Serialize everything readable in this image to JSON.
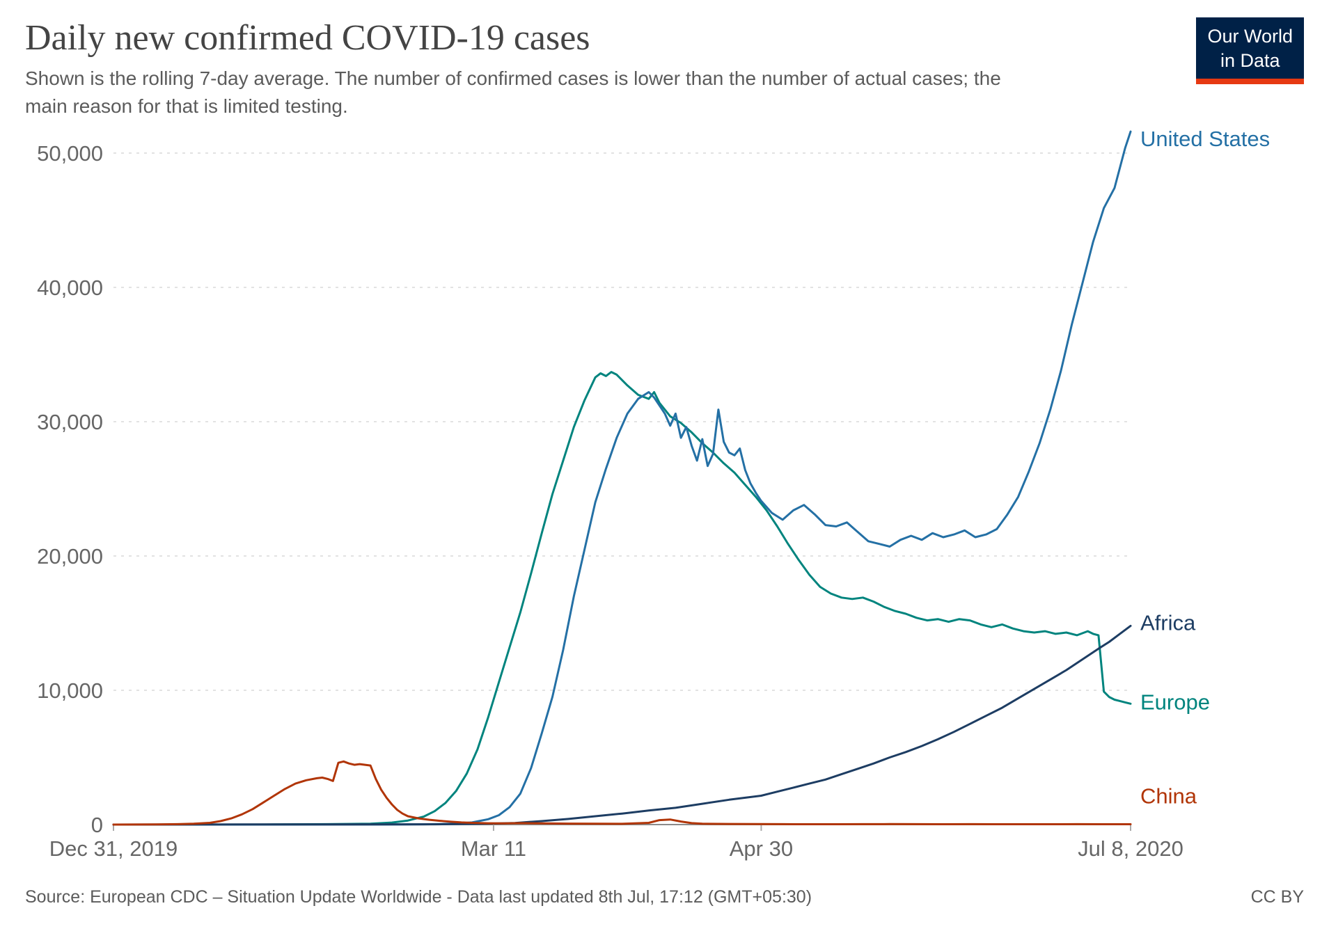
{
  "header": {
    "title": "Daily new confirmed COVID-19 cases",
    "subtitle": "Shown is the rolling 7-day average. The number of confirmed cases is lower than the number of actual cases; the main reason for that is limited testing.",
    "logo": {
      "line1": "Our World",
      "line2": "in Data",
      "bg": "#002147",
      "stripe": "#e63912"
    }
  },
  "footer": {
    "source": "Source: European CDC – Situation Update Worldwide - Data last updated 8th Jul, 17:12 (GMT+05:30)",
    "license": "CC BY"
  },
  "chart_data": {
    "type": "line",
    "title": "Daily new confirmed COVID-19 cases",
    "subtitle": "Shown is the rolling 7-day average. The number of confirmed cases is lower than the number of actual cases; the main reason for that is limited testing.",
    "grid": true,
    "legend_position": "right-end-labels",
    "x_axis": {
      "unit": "days since Dec 31, 2019",
      "domain": [
        0,
        190
      ],
      "ticks": [
        {
          "day": 0,
          "label": "Dec 31, 2019"
        },
        {
          "day": 71,
          "label": "Mar 11"
        },
        {
          "day": 121,
          "label": "Apr 30"
        },
        {
          "day": 190,
          "label": "Jul 8, 2020"
        }
      ]
    },
    "y_axis": {
      "domain": [
        0,
        52000
      ],
      "ticks": [
        {
          "value": 0,
          "label": "0"
        },
        {
          "value": 10000,
          "label": "10,000"
        },
        {
          "value": 20000,
          "label": "20,000"
        },
        {
          "value": 30000,
          "label": "30,000"
        },
        {
          "value": 40000,
          "label": "40,000"
        },
        {
          "value": 50000,
          "label": "50,000"
        }
      ]
    },
    "series": [
      {
        "name": "Europe",
        "color": "#00847e",
        "label_dy": 8,
        "points": [
          [
            0,
            0
          ],
          [
            20,
            0
          ],
          [
            30,
            10
          ],
          [
            40,
            30
          ],
          [
            48,
            60
          ],
          [
            52,
            150
          ],
          [
            55,
            300
          ],
          [
            58,
            600
          ],
          [
            60,
            1000
          ],
          [
            62,
            1600
          ],
          [
            64,
            2500
          ],
          [
            66,
            3800
          ],
          [
            68,
            5600
          ],
          [
            70,
            8000
          ],
          [
            72,
            10600
          ],
          [
            74,
            13200
          ],
          [
            76,
            15800
          ],
          [
            78,
            18700
          ],
          [
            80,
            21700
          ],
          [
            82,
            24600
          ],
          [
            84,
            27100
          ],
          [
            86,
            29600
          ],
          [
            88,
            31600
          ],
          [
            90,
            33300
          ],
          [
            91,
            33600
          ],
          [
            92,
            33400
          ],
          [
            93,
            33700
          ],
          [
            94,
            33500
          ],
          [
            95,
            33100
          ],
          [
            96,
            32700
          ],
          [
            98,
            32000
          ],
          [
            100,
            31700
          ],
          [
            101,
            32200
          ],
          [
            102,
            31400
          ],
          [
            104,
            30400
          ],
          [
            106,
            29900
          ],
          [
            108,
            29200
          ],
          [
            110,
            28400
          ],
          [
            112,
            27700
          ],
          [
            114,
            26900
          ],
          [
            116,
            26200
          ],
          [
            118,
            25300
          ],
          [
            120,
            24400
          ],
          [
            122,
            23400
          ],
          [
            124,
            22200
          ],
          [
            126,
            20900
          ],
          [
            128,
            19700
          ],
          [
            130,
            18600
          ],
          [
            132,
            17700
          ],
          [
            134,
            17200
          ],
          [
            136,
            16900
          ],
          [
            138,
            16800
          ],
          [
            140,
            16900
          ],
          [
            142,
            16600
          ],
          [
            144,
            16200
          ],
          [
            146,
            15900
          ],
          [
            148,
            15700
          ],
          [
            150,
            15400
          ],
          [
            152,
            15200
          ],
          [
            154,
            15300
          ],
          [
            156,
            15100
          ],
          [
            158,
            15300
          ],
          [
            160,
            15200
          ],
          [
            162,
            14900
          ],
          [
            164,
            14700
          ],
          [
            166,
            14900
          ],
          [
            168,
            14600
          ],
          [
            170,
            14400
          ],
          [
            172,
            14300
          ],
          [
            174,
            14400
          ],
          [
            176,
            14200
          ],
          [
            178,
            14300
          ],
          [
            180,
            14100
          ],
          [
            182,
            14400
          ],
          [
            183,
            14200
          ],
          [
            184,
            14100
          ],
          [
            185,
            9900
          ],
          [
            186,
            9500
          ],
          [
            187,
            9300
          ],
          [
            188,
            9200
          ],
          [
            189,
            9100
          ],
          [
            190,
            9000
          ]
        ]
      },
      {
        "name": "United States",
        "color": "#2470a5",
        "label_dy": 6,
        "points": [
          [
            0,
            0
          ],
          [
            30,
            0
          ],
          [
            50,
            5
          ],
          [
            55,
            10
          ],
          [
            58,
            20
          ],
          [
            61,
            40
          ],
          [
            64,
            80
          ],
          [
            67,
            160
          ],
          [
            70,
            400
          ],
          [
            72,
            700
          ],
          [
            74,
            1300
          ],
          [
            76,
            2300
          ],
          [
            78,
            4200
          ],
          [
            80,
            6800
          ],
          [
            82,
            9500
          ],
          [
            84,
            13000
          ],
          [
            86,
            17000
          ],
          [
            88,
            20500
          ],
          [
            90,
            24000
          ],
          [
            92,
            26500
          ],
          [
            94,
            28800
          ],
          [
            96,
            30600
          ],
          [
            98,
            31700
          ],
          [
            100,
            32200
          ],
          [
            101,
            31800
          ],
          [
            102,
            31200
          ],
          [
            103,
            30600
          ],
          [
            104,
            29700
          ],
          [
            105,
            30600
          ],
          [
            106,
            28800
          ],
          [
            107,
            29600
          ],
          [
            108,
            28200
          ],
          [
            109,
            27100
          ],
          [
            110,
            28700
          ],
          [
            111,
            26700
          ],
          [
            112,
            27600
          ],
          [
            113,
            30900
          ],
          [
            114,
            28500
          ],
          [
            115,
            27700
          ],
          [
            116,
            27500
          ],
          [
            117,
            28000
          ],
          [
            118,
            26400
          ],
          [
            119,
            25400
          ],
          [
            120,
            24700
          ],
          [
            121,
            24100
          ],
          [
            123,
            23200
          ],
          [
            125,
            22700
          ],
          [
            127,
            23400
          ],
          [
            129,
            23800
          ],
          [
            131,
            23100
          ],
          [
            133,
            22300
          ],
          [
            135,
            22200
          ],
          [
            137,
            22500
          ],
          [
            139,
            21800
          ],
          [
            141,
            21100
          ],
          [
            143,
            20900
          ],
          [
            145,
            20700
          ],
          [
            147,
            21200
          ],
          [
            149,
            21500
          ],
          [
            151,
            21200
          ],
          [
            153,
            21700
          ],
          [
            155,
            21400
          ],
          [
            157,
            21600
          ],
          [
            159,
            21900
          ],
          [
            161,
            21400
          ],
          [
            163,
            21600
          ],
          [
            165,
            22000
          ],
          [
            167,
            23100
          ],
          [
            169,
            24400
          ],
          [
            171,
            26300
          ],
          [
            173,
            28400
          ],
          [
            175,
            30900
          ],
          [
            177,
            33800
          ],
          [
            179,
            37200
          ],
          [
            181,
            40300
          ],
          [
            183,
            43400
          ],
          [
            185,
            45900
          ],
          [
            187,
            47400
          ],
          [
            188,
            48900
          ],
          [
            189,
            50400
          ],
          [
            190,
            51600
          ]
        ]
      },
      {
        "name": "Africa",
        "color": "#1d3d63",
        "label_dy": 6,
        "points": [
          [
            0,
            0
          ],
          [
            60,
            20
          ],
          [
            70,
            60
          ],
          [
            75,
            120
          ],
          [
            80,
            260
          ],
          [
            85,
            420
          ],
          [
            90,
            620
          ],
          [
            95,
            820
          ],
          [
            100,
            1050
          ],
          [
            105,
            1250
          ],
          [
            110,
            1550
          ],
          [
            115,
            1850
          ],
          [
            118,
            2000
          ],
          [
            121,
            2150
          ],
          [
            124,
            2450
          ],
          [
            127,
            2750
          ],
          [
            130,
            3050
          ],
          [
            133,
            3350
          ],
          [
            136,
            3750
          ],
          [
            139,
            4150
          ],
          [
            142,
            4550
          ],
          [
            145,
            5000
          ],
          [
            148,
            5400
          ],
          [
            151,
            5850
          ],
          [
            154,
            6350
          ],
          [
            157,
            6900
          ],
          [
            160,
            7500
          ],
          [
            163,
            8100
          ],
          [
            166,
            8700
          ],
          [
            169,
            9400
          ],
          [
            172,
            10100
          ],
          [
            175,
            10800
          ],
          [
            178,
            11500
          ],
          [
            181,
            12300
          ],
          [
            184,
            13100
          ],
          [
            186,
            13600
          ],
          [
            188,
            14200
          ],
          [
            190,
            14800
          ]
        ]
      },
      {
        "name": "China",
        "color": "#b13507",
        "label_dy": -30,
        "points": [
          [
            0,
            0
          ],
          [
            8,
            10
          ],
          [
            12,
            30
          ],
          [
            15,
            60
          ],
          [
            18,
            130
          ],
          [
            20,
            260
          ],
          [
            22,
            460
          ],
          [
            24,
            760
          ],
          [
            26,
            1150
          ],
          [
            28,
            1650
          ],
          [
            30,
            2150
          ],
          [
            32,
            2650
          ],
          [
            34,
            3050
          ],
          [
            36,
            3300
          ],
          [
            38,
            3450
          ],
          [
            39,
            3500
          ],
          [
            40,
            3400
          ],
          [
            41,
            3250
          ],
          [
            42,
            4600
          ],
          [
            43,
            4700
          ],
          [
            44,
            4550
          ],
          [
            45,
            4450
          ],
          [
            46,
            4500
          ],
          [
            47,
            4450
          ],
          [
            48,
            4400
          ],
          [
            49,
            3400
          ],
          [
            50,
            2600
          ],
          [
            51,
            2000
          ],
          [
            52,
            1500
          ],
          [
            53,
            1100
          ],
          [
            54,
            820
          ],
          [
            55,
            620
          ],
          [
            57,
            460
          ],
          [
            59,
            360
          ],
          [
            61,
            280
          ],
          [
            63,
            210
          ],
          [
            65,
            160
          ],
          [
            67,
            130
          ],
          [
            70,
            100
          ],
          [
            73,
            90
          ],
          [
            76,
            110
          ],
          [
            80,
            90
          ],
          [
            85,
            70
          ],
          [
            90,
            60
          ],
          [
            95,
            55
          ],
          [
            100,
            130
          ],
          [
            102,
            330
          ],
          [
            104,
            380
          ],
          [
            106,
            230
          ],
          [
            108,
            110
          ],
          [
            110,
            60
          ],
          [
            115,
            45
          ],
          [
            120,
            35
          ],
          [
            125,
            30
          ],
          [
            130,
            25
          ],
          [
            135,
            25
          ],
          [
            140,
            30
          ],
          [
            145,
            35
          ],
          [
            150,
            30
          ],
          [
            155,
            25
          ],
          [
            160,
            30
          ],
          [
            165,
            25
          ],
          [
            170,
            25
          ],
          [
            175,
            25
          ],
          [
            180,
            30
          ],
          [
            185,
            25
          ],
          [
            190,
            25
          ]
        ]
      }
    ]
  }
}
